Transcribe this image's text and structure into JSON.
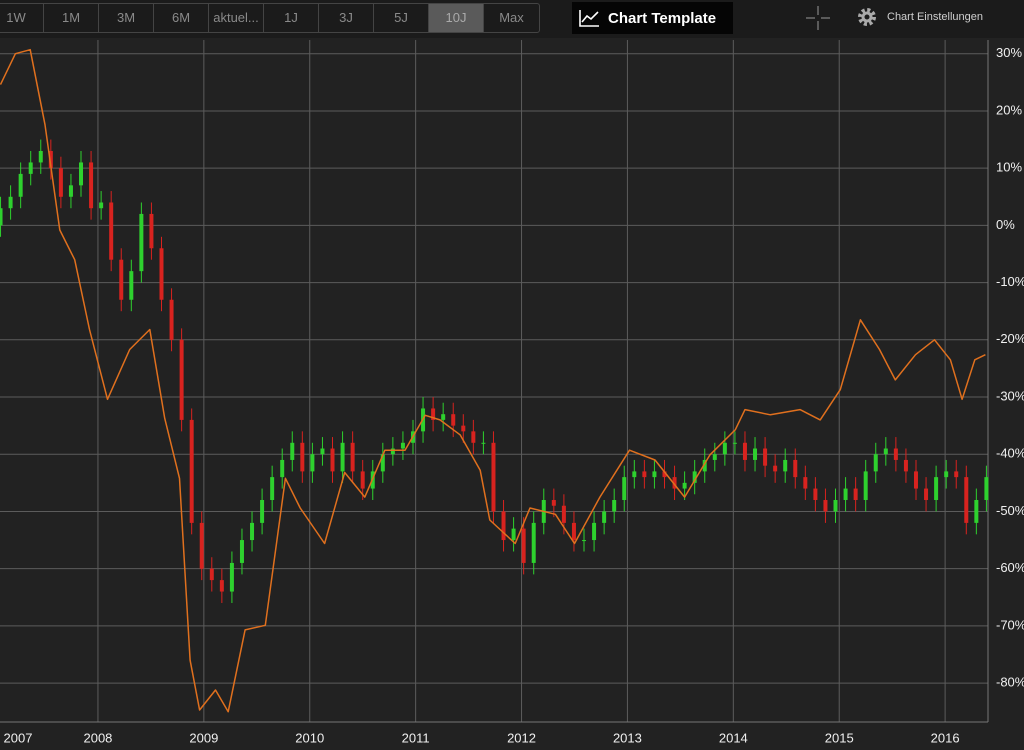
{
  "toolbar": {
    "ranges": [
      "1W",
      "1M",
      "3M",
      "6M",
      "aktuel...",
      "1J",
      "3J",
      "5J",
      "10J",
      "Max"
    ],
    "selected": "10J",
    "template": "Chart Template",
    "settings": "Chart Einstellungen"
  },
  "chart_data": {
    "type": "candlestick",
    "grid": true,
    "xlim": [
      2007.075,
      2016.405
    ],
    "ylim": [
      -86.8,
      32.4
    ],
    "xticks": [
      2007,
      2008,
      2009,
      2010,
      2011,
      2012,
      2013,
      2014,
      2015,
      2016
    ],
    "yticks": [
      {
        "value": 30,
        "label": "30%"
      },
      {
        "value": 20,
        "label": "20%"
      },
      {
        "value": 10,
        "label": "10%"
      },
      {
        "value": 0,
        "label": "0%"
      },
      {
        "value": -10,
        "label": "-10%"
      },
      {
        "value": -20,
        "label": "-20%"
      },
      {
        "value": -30,
        "label": "-30%"
      },
      {
        "value": -40,
        "label": "-40%"
      },
      {
        "value": -50,
        "label": "-50%"
      },
      {
        "value": -60,
        "label": "-60%"
      },
      {
        "value": -70,
        "label": "-70%"
      },
      {
        "value": -80,
        "label": "-80%"
      }
    ],
    "series": [
      {
        "type": "candlestick",
        "up_color": "#2ed12e",
        "down_color": "#d8231f",
        "x": [
          2007.08,
          2007.175,
          2007.27,
          2007.365,
          2007.46,
          2007.555,
          2007.65,
          2007.745,
          2007.84,
          2007.935,
          2008.03,
          2008.125,
          2008.22,
          2008.315,
          2008.41,
          2008.505,
          2008.6,
          2008.695,
          2008.79,
          2008.885,
          2008.98,
          2009.075,
          2009.17,
          2009.265,
          2009.36,
          2009.455,
          2009.55,
          2009.645,
          2009.74,
          2009.835,
          2009.93,
          2010.025,
          2010.12,
          2010.215,
          2010.31,
          2010.405,
          2010.5,
          2010.595,
          2010.69,
          2010.785,
          2010.88,
          2010.975,
          2011.07,
          2011.165,
          2011.26,
          2011.355,
          2011.45,
          2011.545,
          2011.64,
          2011.735,
          2011.83,
          2011.925,
          2012.02,
          2012.115,
          2012.21,
          2012.305,
          2012.4,
          2012.495,
          2012.59,
          2012.685,
          2012.78,
          2012.875,
          2012.97,
          2013.065,
          2013.16,
          2013.255,
          2013.35,
          2013.445,
          2013.54,
          2013.635,
          2013.73,
          2013.825,
          2013.92,
          2014.015,
          2014.11,
          2014.205,
          2014.3,
          2014.395,
          2014.49,
          2014.585,
          2014.68,
          2014.775,
          2014.87,
          2014.965,
          2015.06,
          2015.155,
          2015.25,
          2015.345,
          2015.44,
          2015.535,
          2015.63,
          2015.725,
          2015.82,
          2015.915,
          2016.01,
          2016.105,
          2016.2,
          2016.295,
          2016.39
        ],
        "open": [
          0,
          3,
          5,
          9,
          11,
          13,
          10,
          5,
          7,
          11,
          3,
          4,
          -6,
          -13,
          -8,
          2,
          -4,
          -13,
          -20,
          -34,
          -52,
          -60,
          -62,
          -64,
          -59,
          -55,
          -52,
          -48,
          -44,
          -41,
          -38,
          -43,
          -40,
          -39,
          -43,
          -38,
          -43,
          -46,
          -43,
          -40,
          -39,
          -38,
          -36,
          -32,
          -34,
          -33,
          -35,
          -36,
          -38,
          -38,
          -50,
          -55,
          -53,
          -59,
          -52,
          -48,
          -49,
          -52,
          -55,
          -55,
          -52,
          -50,
          -48,
          -44,
          -43,
          -44,
          -43,
          -44,
          -46,
          -45,
          -43,
          -41,
          -40,
          -38,
          -38,
          -41,
          -39,
          -42,
          -43,
          -41,
          -44,
          -46,
          -48,
          -50,
          -48,
          -46,
          -48,
          -43,
          -40,
          -39,
          -41,
          -43,
          -46,
          -48,
          -44,
          -43,
          -44,
          -52,
          -48
        ],
        "high": [
          5,
          7,
          11,
          13,
          15,
          15,
          12,
          9,
          13,
          13,
          6,
          6,
          -4,
          -6,
          4,
          4,
          -2,
          -11,
          -18,
          -32,
          -50,
          -58,
          -60,
          -57,
          -53,
          -50,
          -46,
          -42,
          -39,
          -36,
          -36,
          -38,
          -37,
          -37,
          -36,
          -36,
          -41,
          -41,
          -38,
          -37,
          -36,
          -34,
          -30,
          -30,
          -31,
          -31,
          -33,
          -34,
          -36,
          -36,
          -48,
          -51,
          -51,
          -50,
          -46,
          -46,
          -47,
          -50,
          -53,
          -50,
          -48,
          -46,
          -42,
          -41,
          -41,
          -41,
          -41,
          -42,
          -43,
          -41,
          -39,
          -38,
          -36,
          -36,
          -36,
          -37,
          -37,
          -40,
          -39,
          -39,
          -42,
          -44,
          -46,
          -46,
          -44,
          -44,
          -41,
          -38,
          -37,
          -37,
          -39,
          -41,
          -44,
          -42,
          -41,
          -41,
          -42,
          -46,
          -42
        ],
        "low": [
          -2,
          1,
          3,
          7,
          9,
          8,
          3,
          3,
          5,
          1,
          1,
          -8,
          -15,
          -15,
          -10,
          -6,
          -15,
          -22,
          -36,
          -54,
          -62,
          -64,
          -66,
          -66,
          -61,
          -57,
          -54,
          -50,
          -46,
          -43,
          -45,
          -45,
          -42,
          -45,
          -45,
          -45,
          -48,
          -48,
          -45,
          -42,
          -41,
          -40,
          -38,
          -36,
          -36,
          -37,
          -38,
          -40,
          -40,
          -52,
          -57,
          -57,
          -61,
          -61,
          -54,
          -51,
          -54,
          -57,
          -57,
          -57,
          -54,
          -52,
          -50,
          -46,
          -46,
          -46,
          -46,
          -48,
          -48,
          -47,
          -45,
          -43,
          -42,
          -40,
          -43,
          -43,
          -44,
          -45,
          -45,
          -46,
          -48,
          -50,
          -52,
          -52,
          -50,
          -50,
          -50,
          -45,
          -42,
          -43,
          -45,
          -48,
          -50,
          -50,
          -46,
          -46,
          -54,
          -54,
          -50
        ],
        "close": [
          3,
          5,
          9,
          11,
          13,
          10,
          5,
          7,
          11,
          3,
          4,
          -6,
          -13,
          -8,
          2,
          -4,
          -13,
          -20,
          -34,
          -52,
          -60,
          -62,
          -64,
          -59,
          -55,
          -52,
          -48,
          -44,
          -41,
          -38,
          -43,
          -40,
          -39,
          -43,
          -38,
          -43,
          -46,
          -43,
          -40,
          -39,
          -38,
          -36,
          -32,
          -34,
          -33,
          -35,
          -36,
          -38,
          -38,
          -50,
          -55,
          -53,
          -59,
          -52,
          -48,
          -49,
          -52,
          -55,
          -55,
          -52,
          -50,
          -48,
          -44,
          -43,
          -44,
          -43,
          -44,
          -46,
          -45,
          -43,
          -41,
          -40,
          -38,
          -38,
          -41,
          -39,
          -42,
          -43,
          -41,
          -44,
          -46,
          -48,
          -50,
          -48,
          -46,
          -48,
          -43,
          -40,
          -39,
          -41,
          -43,
          -46,
          -48,
          -44,
          -43,
          -44,
          -52,
          -48,
          -44
        ]
      },
      {
        "type": "line",
        "color": "#e0701e",
        "x": [
          2007.08,
          2007.22,
          2007.36,
          2007.5,
          2007.64,
          2007.78,
          2007.92,
          2008.09,
          2008.3,
          2008.49,
          2008.63,
          2008.77,
          2008.87,
          2008.96,
          2009.11,
          2009.23,
          2009.39,
          2009.58,
          2009.77,
          2009.91,
          2010.14,
          2010.33,
          2010.52,
          2010.71,
          2010.9,
          2011.09,
          2011.23,
          2011.42,
          2011.61,
          2011.7,
          2011.94,
          2012.08,
          2012.32,
          2012.5,
          2012.74,
          2013.02,
          2013.26,
          2013.54,
          2013.78,
          2014.02,
          2014.11,
          2014.35,
          2014.63,
          2014.82,
          2015.01,
          2015.2,
          2015.38,
          2015.53,
          2015.72,
          2015.9,
          2016.05,
          2016.16,
          2016.28,
          2016.38
        ],
        "values": [
          24.6,
          30,
          30.7,
          17.6,
          -0.8,
          -6,
          -18.2,
          -30.4,
          -21.7,
          -18.2,
          -33.7,
          -44.2,
          -76,
          -84.7,
          -81.2,
          -85,
          -70.7,
          -69.9,
          -44.2,
          -49.4,
          -55.6,
          -43.2,
          -47.5,
          -39.3,
          -39.3,
          -33.2,
          -34,
          -36.6,
          -42.8,
          -51.5,
          -55.6,
          -49.4,
          -50.5,
          -55.6,
          -47.5,
          -39.3,
          -41,
          -47.5,
          -40.1,
          -35.7,
          -32.2,
          -33.1,
          -32.2,
          -34,
          -28.7,
          -16.5,
          -21.7,
          -27,
          -22.6,
          -20,
          -23.5,
          -30.4,
          -23.5,
          -22.6
        ]
      }
    ]
  }
}
